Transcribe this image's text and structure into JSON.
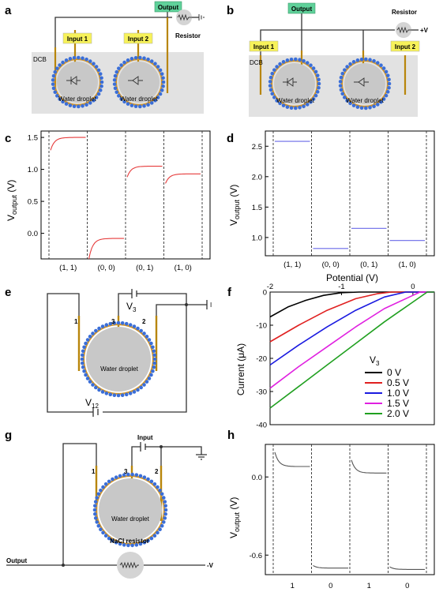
{
  "panels": {
    "a": {
      "label": "a",
      "output": "Output",
      "resistor": "Resistor",
      "input1": "Input 1",
      "input2": "Input 2",
      "dcb": "DCB",
      "droplet": "Water droplet"
    },
    "b": {
      "label": "b",
      "output": "Output",
      "resistor": "Resistor",
      "plus_v": "+V",
      "input1": "Input 1",
      "input2": "Input 2",
      "dcb": "DCB",
      "droplet": "Water droplet"
    },
    "c": {
      "label": "c",
      "ylabel_main": "V",
      "ylabel_sub": "output",
      "ylabel_unit": " (V)",
      "xticks": [
        "(1, 1)",
        "(0, 0)",
        "(0, 1)",
        "(1, 0)"
      ]
    },
    "d": {
      "label": "d",
      "ylabel_main": "V",
      "ylabel_sub": "output",
      "ylabel_unit": " (V)",
      "xticks": [
        "(1, 1)",
        "(0, 0)",
        "(0, 1)",
        "(1, 0)"
      ]
    },
    "e": {
      "label": "e",
      "v3_main": "V",
      "v3_sub": "3",
      "v12_main": "V",
      "v12_sub": "12",
      "e1": "1",
      "e2": "2",
      "e3": "3",
      "current_meter": "I",
      "droplet": "Water droplet"
    },
    "f": {
      "label": "f",
      "xlabel": "Potential (V)",
      "ylabel": "Current (μA)",
      "legend_title_main": "V",
      "legend_title_sub": "3"
    },
    "g": {
      "label": "g",
      "input": "Input",
      "e1": "1",
      "e2": "2",
      "e3": "3",
      "droplet": "Water droplet",
      "nacl": "NaCl resistor",
      "output": "Output",
      "minus_v": "-V"
    },
    "h": {
      "label": "h",
      "ylabel_main": "V",
      "ylabel_sub": "output",
      "ylabel_unit": " (V)",
      "xticks": [
        "1",
        "0",
        "1",
        "0"
      ]
    }
  },
  "colors": {
    "droplet_fill": "#c8c8c8",
    "lipid_blue": "#3a6ed8",
    "lipid_tail": "#d4962a",
    "label_box": "#f7f25a",
    "output_box": "#5fd19a",
    "curve_c": "#e63b3b",
    "curve_d": "#6a6ae8",
    "curve_h": "#555555"
  },
  "chart_data": [
    {
      "id": "c",
      "type": "line",
      "categories": [
        "(1, 1)",
        "(0, 0)",
        "(0, 1)",
        "(1, 0)"
      ],
      "ylim": [
        -0.4,
        1.6
      ],
      "yticks": [
        "0.0",
        "0.5",
        "1.0",
        "1.5"
      ],
      "segments": [
        {
          "category": "(1, 1)",
          "start": 1.3,
          "end": 1.5
        },
        {
          "category": "(0, 0)",
          "start": -0.4,
          "end": -0.08
        },
        {
          "category": "(0, 1)",
          "start": 0.88,
          "end": 1.05
        },
        {
          "category": "(1, 0)",
          "start": 0.78,
          "end": 0.93
        }
      ],
      "ylabel": "Voutput (V)"
    },
    {
      "id": "d",
      "type": "line",
      "categories": [
        "(1, 1)",
        "(0, 0)",
        "(0, 1)",
        "(1, 0)"
      ],
      "ylim": [
        0.7,
        2.75
      ],
      "yticks": [
        "1.0",
        "1.5",
        "2.0",
        "2.5"
      ],
      "segments": [
        {
          "category": "(1, 1)",
          "start": 2.58,
          "end": 2.58
        },
        {
          "category": "(0, 0)",
          "start": 0.82,
          "end": 0.82
        },
        {
          "category": "(0, 1)",
          "start": 1.15,
          "end": 1.15
        },
        {
          "category": "(1, 0)",
          "start": 0.95,
          "end": 0.95
        }
      ],
      "ylabel": "Voutput (V)"
    },
    {
      "id": "f",
      "type": "line",
      "xlim": [
        -2.0,
        0.3
      ],
      "ylim": [
        -40,
        0
      ],
      "xticks": [
        "-2",
        "-1",
        "0"
      ],
      "yticks": [
        "0",
        "-10",
        "-20",
        "-30",
        "-40"
      ],
      "xlabel": "Potential (V)",
      "ylabel": "Current (μA)",
      "legend_title": "V3",
      "series": [
        {
          "name": "0 V",
          "color": "#000000",
          "x": [
            -2.0,
            -1.75,
            -1.5,
            -1.25,
            -1.0,
            -0.75
          ],
          "y": [
            -7.5,
            -4.5,
            -2.5,
            -1.0,
            -0.2,
            0
          ]
        },
        {
          "name": "0.5 V",
          "color": "#e02020",
          "x": [
            -2.0,
            -1.6,
            -1.2,
            -0.8,
            -0.5,
            -0.3
          ],
          "y": [
            -15,
            -10,
            -5.5,
            -2,
            -0.5,
            0
          ]
        },
        {
          "name": "1.0 V",
          "color": "#1a1ae0",
          "x": [
            -2.0,
            -1.6,
            -1.2,
            -0.8,
            -0.4,
            -0.1
          ],
          "y": [
            -22,
            -16,
            -10.5,
            -5.5,
            -1.5,
            0
          ]
        },
        {
          "name": "1.5 V",
          "color": "#e020e0",
          "x": [
            -2.0,
            -1.6,
            -1.2,
            -0.8,
            -0.4,
            0.0,
            0.1
          ],
          "y": [
            -29,
            -22.5,
            -16.5,
            -10.5,
            -5,
            -1,
            0
          ]
        },
        {
          "name": "2.0 V",
          "color": "#20a020",
          "x": [
            -2.0,
            -1.6,
            -1.2,
            -0.8,
            -0.4,
            0.0,
            0.2
          ],
          "y": [
            -35,
            -28.5,
            -22,
            -15.5,
            -9,
            -3,
            0
          ]
        }
      ]
    },
    {
      "id": "h",
      "type": "line",
      "categories": [
        "1",
        "0",
        "1",
        "0"
      ],
      "ylim": [
        -0.75,
        0.25
      ],
      "yticks": [
        "0.0",
        "-0.6"
      ],
      "segments": [
        {
          "category": "1",
          "start": 0.19,
          "end": 0.08
        },
        {
          "category": "0",
          "start": -0.68,
          "end": -0.7
        },
        {
          "category": "1",
          "start": 0.13,
          "end": 0.03
        },
        {
          "category": "0",
          "start": -0.69,
          "end": -0.71
        }
      ],
      "ylabel": "Voutput (V)"
    }
  ]
}
